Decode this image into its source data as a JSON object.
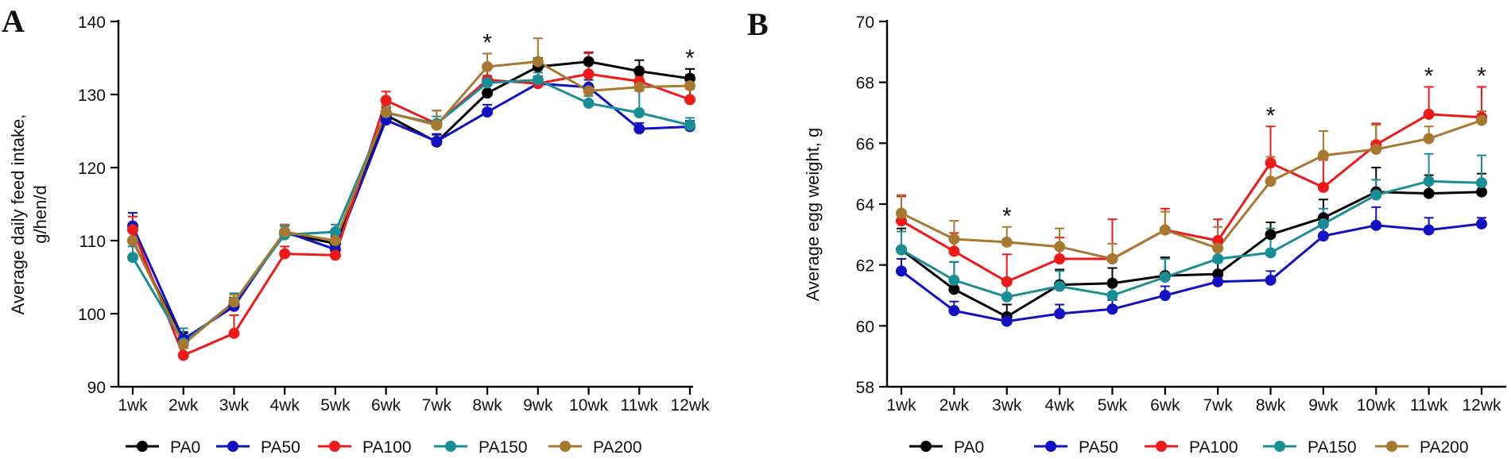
{
  "chart_data": [
    {
      "type": "line",
      "panel_label": "A",
      "ylabel_lines": [
        "Average daily feed intake,",
        "g/hen/d"
      ],
      "xlabel": "",
      "categories": [
        "1wk",
        "2wk",
        "3wk",
        "4wk",
        "5wk",
        "6wk",
        "7wk",
        "8wk",
        "9wk",
        "10wk",
        "11wk",
        "12wk"
      ],
      "ylim": [
        90,
        140
      ],
      "yticks": [
        90,
        100,
        110,
        120,
        130,
        140
      ],
      "ytick_labels": [
        "90",
        "100",
        "110",
        "120",
        "130",
        "140"
      ],
      "series": [
        {
          "name": "PA0",
          "values": [
            110.0,
            96.3,
            101.2,
            111.0,
            109.6,
            127.2,
            123.5,
            130.2,
            133.8,
            134.5,
            133.2,
            132.2
          ],
          "error": [
            1.5,
            1.0,
            1.0,
            1.0,
            1.0,
            1.0,
            1.0,
            1.2,
            1.2,
            1.2,
            1.5,
            1.3
          ]
        },
        {
          "name": "PA50",
          "values": [
            112.0,
            96.5,
            101.0,
            111.2,
            108.8,
            126.5,
            123.6,
            127.6,
            131.5,
            131.0,
            125.3,
            125.6
          ],
          "error": [
            1.8,
            1.0,
            1.0,
            1.0,
            1.0,
            1.0,
            1.0,
            1.0,
            1.0,
            1.0,
            0.8,
            0.8
          ]
        },
        {
          "name": "PA100",
          "values": [
            111.5,
            94.3,
            97.3,
            108.2,
            108.0,
            129.2,
            126.0,
            132.0,
            131.5,
            132.8,
            131.8,
            129.3
          ],
          "error": [
            1.8,
            1.0,
            2.5,
            1.0,
            1.0,
            1.2,
            1.8,
            1.5,
            1.0,
            3.0,
            1.8,
            1.5
          ]
        },
        {
          "name": "PA150",
          "values": [
            107.7,
            96.0,
            101.6,
            110.8,
            111.2,
            127.5,
            126.0,
            131.6,
            132.0,
            128.8,
            127.5,
            125.8
          ],
          "error": [
            1.5,
            2.0,
            1.2,
            1.2,
            1.0,
            1.0,
            1.0,
            1.0,
            1.0,
            1.0,
            3.0,
            1.0
          ]
        },
        {
          "name": "PA200",
          "values": [
            110.0,
            95.8,
            101.6,
            111.2,
            110.0,
            127.6,
            125.8,
            133.8,
            134.5,
            130.5,
            131.0,
            131.2
          ],
          "error": [
            1.5,
            1.0,
            1.0,
            1.0,
            1.0,
            1.0,
            2.0,
            1.8,
            3.2,
            2.5,
            1.5,
            1.5
          ]
        }
      ],
      "annotations": [
        {
          "category": "8wk",
          "text": "*"
        },
        {
          "category": "12wk",
          "text": "*"
        }
      ],
      "legend_position": "bottom"
    },
    {
      "type": "line",
      "panel_label": "B",
      "ylabel_lines": [
        "Average egg weight, g"
      ],
      "xlabel": "",
      "categories": [
        "1wk",
        "2wk",
        "3wk",
        "4wk",
        "5wk",
        "6wk",
        "7wk",
        "8wk",
        "9wk",
        "10wk",
        "11wk",
        "12wk"
      ],
      "ylim": [
        58,
        70
      ],
      "yticks": [
        58,
        60,
        62,
        64,
        66,
        68,
        70
      ],
      "ytick_labels": [
        "58",
        "60",
        "62",
        "64",
        "66",
        "68",
        "70"
      ],
      "series": [
        {
          "name": "PA0",
          "values": [
            62.5,
            61.2,
            60.3,
            61.35,
            61.4,
            61.65,
            61.7,
            63.0,
            63.55,
            64.4,
            64.35,
            64.4
          ],
          "error": [
            0.7,
            0.9,
            0.4,
            0.5,
            0.5,
            0.6,
            0.4,
            0.4,
            0.6,
            0.8,
            0.6,
            0.6
          ]
        },
        {
          "name": "PA50",
          "values": [
            61.8,
            60.5,
            60.15,
            60.4,
            60.55,
            61.0,
            61.45,
            61.5,
            62.95,
            63.3,
            63.15,
            63.35
          ],
          "error": [
            0.4,
            0.3,
            0.2,
            0.3,
            0.3,
            0.3,
            0.3,
            0.3,
            0.3,
            0.6,
            0.4,
            0.2
          ]
        },
        {
          "name": "PA100",
          "values": [
            63.45,
            62.45,
            61.45,
            62.2,
            62.2,
            63.15,
            62.8,
            65.35,
            64.55,
            65.95,
            66.95,
            66.85
          ],
          "error": [
            0.8,
            0.6,
            0.9,
            0.7,
            1.3,
            0.7,
            0.7,
            1.2,
            0.9,
            0.7,
            0.9,
            1.0
          ]
        },
        {
          "name": "PA150",
          "values": [
            62.5,
            61.5,
            60.95,
            61.3,
            61.0,
            61.6,
            62.2,
            62.4,
            63.35,
            64.3,
            64.75,
            64.7
          ],
          "error": [
            0.6,
            0.6,
            0.5,
            0.5,
            0.4,
            0.6,
            0.3,
            0.8,
            0.5,
            0.5,
            0.9,
            0.9
          ]
        },
        {
          "name": "PA200",
          "values": [
            63.7,
            62.85,
            62.75,
            62.6,
            62.2,
            63.15,
            62.55,
            64.75,
            65.6,
            65.8,
            66.15,
            66.75
          ],
          "error": [
            0.6,
            0.6,
            0.5,
            0.6,
            0.5,
            0.6,
            0.7,
            0.8,
            0.8,
            0.8,
            0.4,
            0.3
          ]
        }
      ],
      "annotations": [
        {
          "category": "3wk",
          "text": "*"
        },
        {
          "category": "8wk",
          "text": "*"
        },
        {
          "category": "11wk",
          "text": "*"
        },
        {
          "category": "12wk",
          "text": "*"
        }
      ],
      "legend_position": "bottom"
    }
  ],
  "series_colors": {
    "PA0": "#000000",
    "PA50": "#1212c4",
    "PA100": "#ee1a1a",
    "PA150": "#1a8e97",
    "PA200": "#a7782f"
  }
}
